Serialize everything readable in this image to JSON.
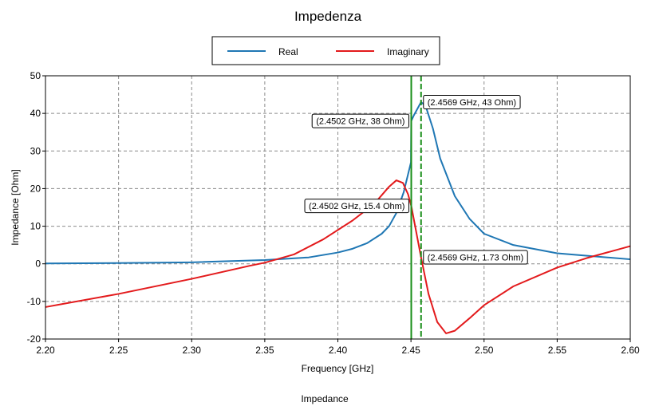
{
  "chart_data": {
    "type": "line",
    "title": "Impedenza",
    "xlabel": "Frequency [GHz]",
    "ylabel": "Impedance [Ohm]",
    "xlim": [
      2.2,
      2.6
    ],
    "ylim": [
      -20,
      50
    ],
    "x_ticks": [
      "2.20",
      "2.25",
      "2.30",
      "2.35",
      "2.40",
      "2.45",
      "2.50",
      "2.55",
      "2.60"
    ],
    "y_ticks": [
      "-20",
      "-10",
      "0",
      "10",
      "20",
      "30",
      "40",
      "50"
    ],
    "grid": true,
    "legend_position": "top-center",
    "series": [
      {
        "name": "Real",
        "color": "#1f77b4",
        "points": [
          [
            2.2,
            0.1
          ],
          [
            2.25,
            0.2
          ],
          [
            2.3,
            0.4
          ],
          [
            2.35,
            1.0
          ],
          [
            2.38,
            1.7
          ],
          [
            2.4,
            3.0
          ],
          [
            2.41,
            4.0
          ],
          [
            2.42,
            5.5
          ],
          [
            2.43,
            8.0
          ],
          [
            2.435,
            10.0
          ],
          [
            2.44,
            13.5
          ],
          [
            2.445,
            19.0
          ],
          [
            2.45,
            27.0
          ],
          [
            2.4502,
            38.0
          ],
          [
            2.452,
            39.5
          ],
          [
            2.4569,
            43.0
          ],
          [
            2.46,
            42.0
          ],
          [
            2.465,
            36.0
          ],
          [
            2.47,
            28.0
          ],
          [
            2.48,
            18.0
          ],
          [
            2.49,
            12.0
          ],
          [
            2.5,
            8.0
          ],
          [
            2.52,
            5.0
          ],
          [
            2.55,
            2.8
          ],
          [
            2.6,
            1.2
          ]
        ]
      },
      {
        "name": "Imaginary",
        "color": "#e31a1c",
        "points": [
          [
            2.2,
            -11.5
          ],
          [
            2.25,
            -8.0
          ],
          [
            2.3,
            -4.0
          ],
          [
            2.34,
            -0.5
          ],
          [
            2.35,
            0.3
          ],
          [
            2.37,
            2.5
          ],
          [
            2.39,
            6.5
          ],
          [
            2.41,
            11.5
          ],
          [
            2.425,
            16.0
          ],
          [
            2.435,
            20.5
          ],
          [
            2.44,
            22.2
          ],
          [
            2.4445,
            21.5
          ],
          [
            2.448,
            18.5
          ],
          [
            2.4502,
            15.4
          ],
          [
            2.4569,
            1.73
          ],
          [
            2.462,
            -8.0
          ],
          [
            2.468,
            -15.5
          ],
          [
            2.474,
            -18.5
          ],
          [
            2.48,
            -17.8
          ],
          [
            2.49,
            -14.5
          ],
          [
            2.5,
            -11.0
          ],
          [
            2.52,
            -6.0
          ],
          [
            2.55,
            -1.0
          ],
          [
            2.57,
            1.5
          ],
          [
            2.6,
            4.7
          ]
        ]
      }
    ],
    "markers": [
      {
        "x": 2.4502,
        "style": "solid",
        "color": "#1a8f1a"
      },
      {
        "x": 2.4569,
        "style": "dashed",
        "color": "#1a8f1a"
      }
    ],
    "annotations": [
      {
        "label": "(2.4502 GHz, 38 Ohm)",
        "x": 2.4502,
        "y": 38,
        "side": "left"
      },
      {
        "label": "(2.4569 GHz, 43 Ohm)",
        "x": 2.4569,
        "y": 43,
        "side": "right"
      },
      {
        "label": "(2.4502 GHz, 15.4 Ohm)",
        "x": 2.4502,
        "y": 15.4,
        "side": "left"
      },
      {
        "label": "(2.4569 GHz, 1.73 Ohm)",
        "x": 2.4569,
        "y": 1.73,
        "side": "right"
      }
    ]
  },
  "caption": "Impedance"
}
